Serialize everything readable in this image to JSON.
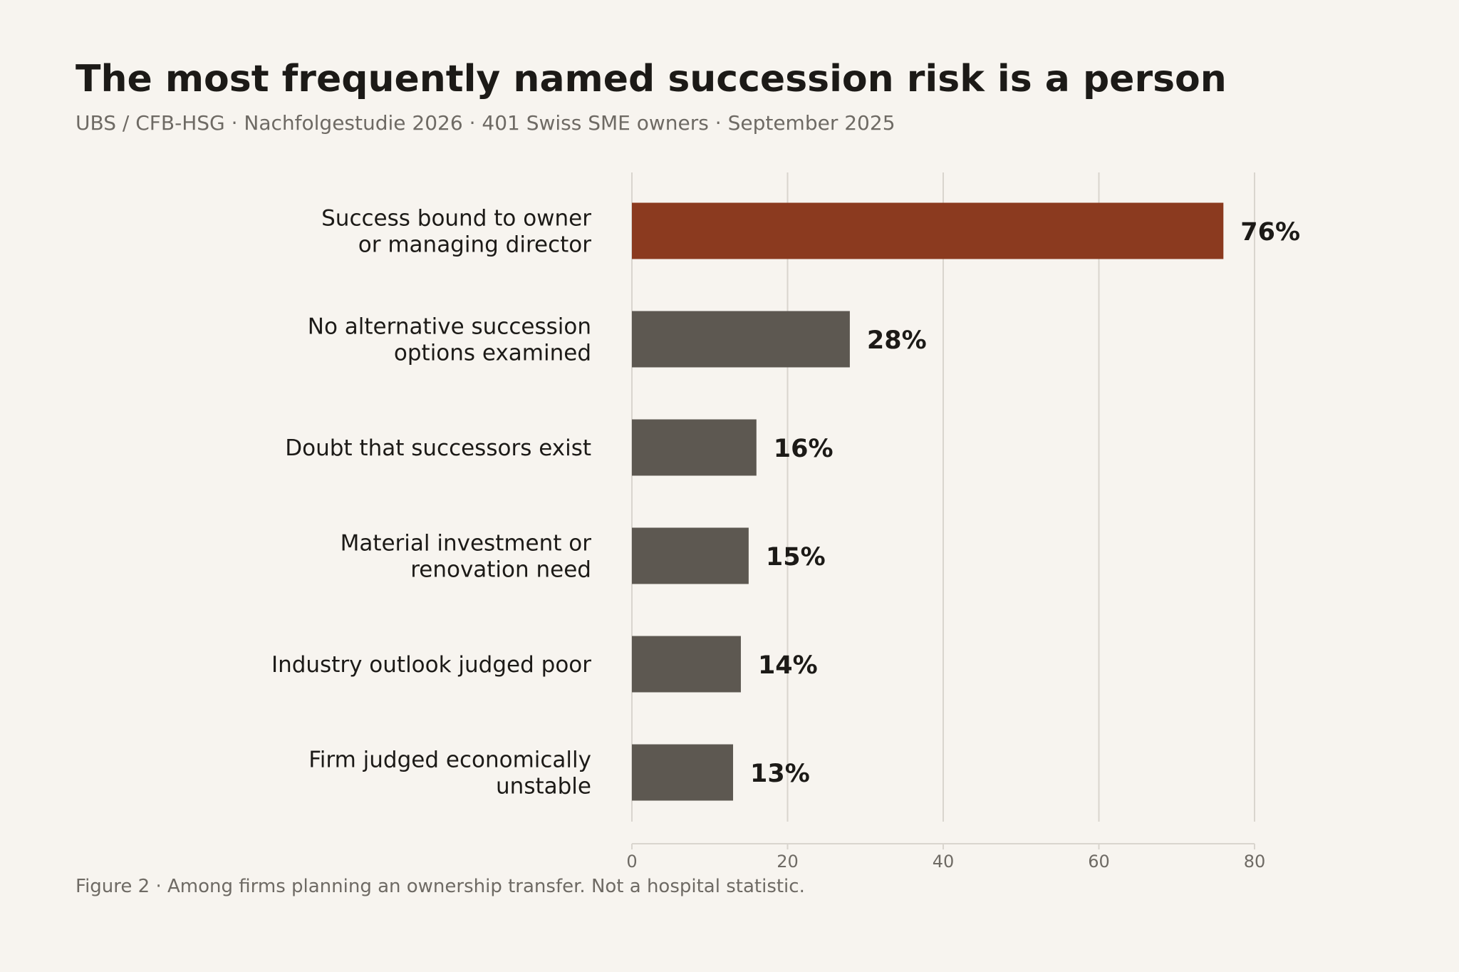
{
  "header": {
    "title": "The most frequently named succession risk is a person",
    "subtitle": "UBS / CFB-HSG  ·  Nachfolgestudie 2026  ·  401 Swiss SME owners  ·  September 2025"
  },
  "footnote": "Figure 2  ·  Among firms planning an ownership transfer. Not a hospital statistic.",
  "colors": {
    "background": "#f7f4ef",
    "highlight_bar": "#8b3a1f",
    "bar": "#5d5851",
    "grid": "#d9d5ce"
  },
  "chart_data": {
    "type": "bar",
    "orientation": "horizontal",
    "title": "The most frequently named succession risk is a person",
    "categories": [
      [
        "Success bound to owner",
        "or managing director"
      ],
      [
        "No alternative succession",
        "options examined"
      ],
      [
        "Doubt that successors exist"
      ],
      [
        "Material investment or",
        "renovation need"
      ],
      [
        "Industry outlook judged poor"
      ],
      [
        "Firm judged economically",
        "unstable"
      ]
    ],
    "values": [
      76,
      28,
      16,
      15,
      14,
      13
    ],
    "value_labels": [
      "76%",
      "28%",
      "16%",
      "15%",
      "14%",
      "13%"
    ],
    "highlighted_index": 0,
    "xlim": [
      0,
      80
    ],
    "xticks": [
      0,
      20,
      40,
      60,
      80
    ],
    "xlabel": "",
    "ylabel": "",
    "grid": "vertical",
    "legend": "none"
  }
}
